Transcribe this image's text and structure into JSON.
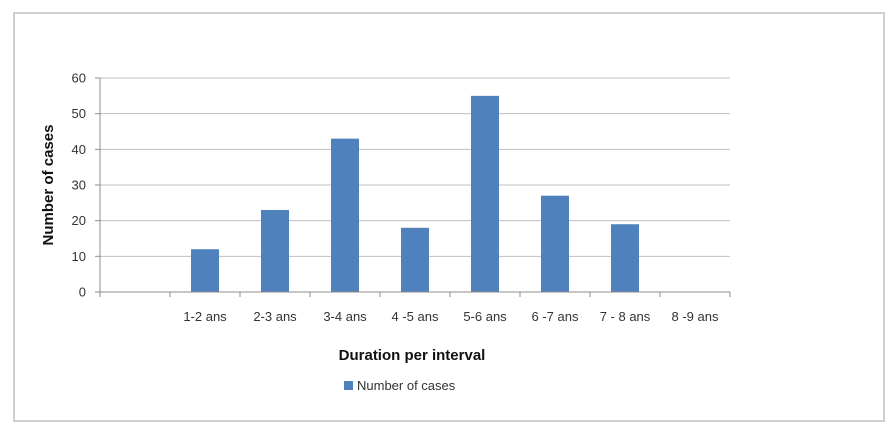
{
  "chart_data": {
    "type": "bar",
    "title": "",
    "xlabel": "Duration per interval",
    "ylabel": "Number of cases",
    "categories": [
      "",
      "1-2 ans",
      "2-3 ans",
      "3-4 ans",
      "4 -5 ans",
      "5-6 ans",
      "6 -7 ans",
      "7 - 8 ans",
      "8 -9 ans"
    ],
    "series": [
      {
        "name": "Number of cases",
        "values": [
          null,
          12,
          23,
          43,
          18,
          55,
          27,
          19,
          null
        ],
        "color": "#4f81bd"
      }
    ],
    "ylim": [
      0,
      60
    ],
    "yticks": [
      0,
      10,
      20,
      30,
      40,
      50,
      60
    ],
    "grid": true,
    "legend_position": "bottom"
  }
}
